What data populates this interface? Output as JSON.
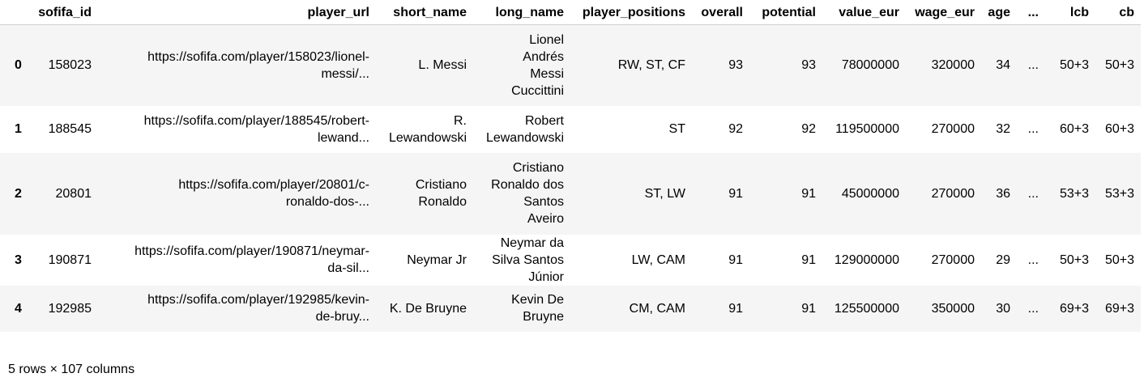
{
  "table": {
    "columns": [
      "",
      "sofifa_id",
      "player_url",
      "short_name",
      "long_name",
      "player_positions",
      "overall",
      "potential",
      "value_eur",
      "wage_eur",
      "age",
      "...",
      "lcb",
      "cb"
    ],
    "rows": [
      {
        "index": "0",
        "sofifa_id": "158023",
        "player_url": [
          "https://sofifa.com/player/158023/lionel-",
          "messi/..."
        ],
        "short_name": [
          "L. Messi"
        ],
        "long_name": [
          "Lionel",
          "Andrés",
          "Messi",
          "Cuccittini"
        ],
        "player_positions": "RW, ST, CF",
        "overall": "93",
        "potential": "93",
        "value_eur": "78000000",
        "wage_eur": "320000",
        "age": "34",
        "ellipsis": "...",
        "lcb": "50+3",
        "cb": "50+3"
      },
      {
        "index": "1",
        "sofifa_id": "188545",
        "player_url": [
          "https://sofifa.com/player/188545/robert-",
          "lewand..."
        ],
        "short_name": [
          "R.",
          "Lewandowski"
        ],
        "long_name": [
          "Robert",
          "Lewandowski"
        ],
        "player_positions": "ST",
        "overall": "92",
        "potential": "92",
        "value_eur": "119500000",
        "wage_eur": "270000",
        "age": "32",
        "ellipsis": "...",
        "lcb": "60+3",
        "cb": "60+3"
      },
      {
        "index": "2",
        "sofifa_id": "20801",
        "player_url": [
          "https://sofifa.com/player/20801/c-",
          "ronaldo-dos-..."
        ],
        "short_name": [
          "Cristiano",
          "Ronaldo"
        ],
        "long_name": [
          "Cristiano",
          "Ronaldo dos",
          "Santos",
          "Aveiro"
        ],
        "player_positions": "ST, LW",
        "overall": "91",
        "potential": "91",
        "value_eur": "45000000",
        "wage_eur": "270000",
        "age": "36",
        "ellipsis": "...",
        "lcb": "53+3",
        "cb": "53+3"
      },
      {
        "index": "3",
        "sofifa_id": "190871",
        "player_url": [
          "https://sofifa.com/player/190871/neymar-",
          "da-sil..."
        ],
        "short_name": [
          "Neymar Jr"
        ],
        "long_name": [
          "Neymar da",
          "Silva Santos",
          "Júnior"
        ],
        "player_positions": "LW, CAM",
        "overall": "91",
        "potential": "91",
        "value_eur": "129000000",
        "wage_eur": "270000",
        "age": "29",
        "ellipsis": "...",
        "lcb": "50+3",
        "cb": "50+3"
      },
      {
        "index": "4",
        "sofifa_id": "192985",
        "player_url": [
          "https://sofifa.com/player/192985/kevin-",
          "de-bruy..."
        ],
        "short_name": [
          "K. De Bruyne"
        ],
        "long_name": [
          "Kevin De",
          "Bruyne"
        ],
        "player_positions": "CM, CAM",
        "overall": "91",
        "potential": "91",
        "value_eur": "125500000",
        "wage_eur": "350000",
        "age": "30",
        "ellipsis": "...",
        "lcb": "69+3",
        "cb": "69+3"
      }
    ]
  },
  "footer": {
    "summary": "5 rows × 107 columns"
  }
}
